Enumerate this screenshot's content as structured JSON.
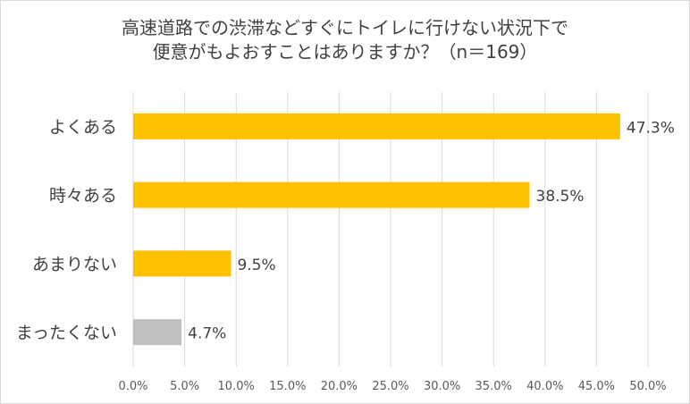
{
  "chart_data": {
    "type": "bar",
    "orientation": "horizontal",
    "title_line1": "高速道路での渋滞などすぐにトイレに行けない状況下で",
    "title_line2": "便意がもよおすことはありますか？（n＝169）",
    "categories": [
      "よくある",
      "時々ある",
      "あまりない",
      "まったくない"
    ],
    "values": [
      47.3,
      38.5,
      9.5,
      4.7
    ],
    "value_labels": [
      "47.3%",
      "38.5%",
      "9.5%",
      "4.7%"
    ],
    "colors": [
      "#ffc000",
      "#ffc000",
      "#ffc000",
      "#bfbfbf"
    ],
    "xlim": [
      0,
      50
    ],
    "xticks": [
      "0.0%",
      "5.0%",
      "10.0%",
      "15.0%",
      "20.0%",
      "25.0%",
      "30.0%",
      "35.0%",
      "40.0%",
      "45.0%",
      "50.0%"
    ],
    "grid": true,
    "legend": "none"
  }
}
